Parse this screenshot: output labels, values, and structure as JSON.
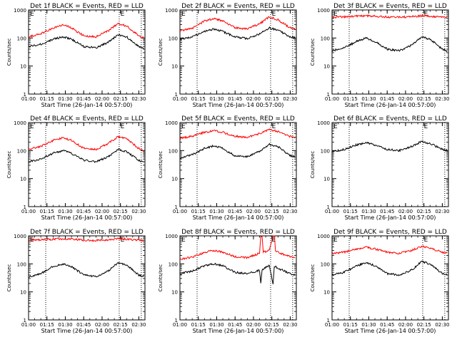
{
  "figure": {
    "shared": {
      "ylabel": "Counts/sec",
      "xlabel": "Start Time (26-Jan-14 00:57:00)",
      "x_tick_labels": [
        "01:00",
        "01:15",
        "01:30",
        "01:45",
        "02:00",
        "02:15",
        "02:30"
      ],
      "y_tick_labels": [
        "1",
        "10",
        "100",
        "1000"
      ],
      "marker_label": "E",
      "colors": {
        "events": "#000000",
        "lld": "#ff0000"
      }
    }
  },
  "chart_data": [
    {
      "type": "line",
      "title": "Det 1f BLACK = Events, RED = LLD",
      "xlabel": "Start Time (26-Jan-14 00:57:00)",
      "ylabel": "Counts/sec",
      "x_unit": "time (HH:MM, 26-Jan-14)",
      "y_scale": "log",
      "xlim": [
        "01:00",
        "02:35"
      ],
      "ylim": [
        1,
        1000
      ],
      "vertical_markers": [
        "01:14",
        "02:14",
        "02:32"
      ],
      "marker_label_at": "02:15",
      "series": [
        {
          "color": "#000000",
          "x": [
            "01:00",
            "01:10",
            "01:20",
            "01:28",
            "01:35",
            "01:45",
            "01:55",
            "02:05",
            "02:13",
            "02:20",
            "02:30",
            "02:34"
          ],
          "values": [
            50,
            60,
            90,
            110,
            90,
            50,
            45,
            70,
            130,
            110,
            50,
            45
          ]
        },
        {
          "color": "#ff0000",
          "x": [
            "01:00",
            "01:10",
            "01:20",
            "01:28",
            "01:35",
            "01:45",
            "01:55",
            "02:05",
            "02:13",
            "02:20",
            "02:30",
            "02:34"
          ],
          "values": [
            110,
            140,
            230,
            300,
            230,
            120,
            110,
            180,
            330,
            270,
            120,
            100
          ]
        }
      ]
    },
    {
      "type": "line",
      "title": "Det 2f BLACK = Events, RED = LLD",
      "xlabel": "Start Time (26-Jan-14 00:57:00)",
      "ylabel": "Counts/sec",
      "x_unit": "time (HH:MM, 26-Jan-14)",
      "y_scale": "log",
      "xlim": [
        "01:00",
        "02:35"
      ],
      "ylim": [
        1,
        1000
      ],
      "vertical_markers": [
        "01:14",
        "02:14",
        "02:32"
      ],
      "marker_label_at": "02:15",
      "series": [
        {
          "color": "#000000",
          "x": [
            "01:00",
            "01:10",
            "01:20",
            "01:28",
            "01:35",
            "01:45",
            "01:55",
            "02:05",
            "02:13",
            "02:20",
            "02:30",
            "02:34"
          ],
          "values": [
            90,
            110,
            170,
            210,
            170,
            110,
            95,
            140,
            230,
            190,
            110,
            100
          ]
        },
        {
          "color": "#ff0000",
          "x": [
            "01:00",
            "01:10",
            "01:20",
            "01:28",
            "01:35",
            "01:45",
            "01:55",
            "02:05",
            "02:13",
            "02:20",
            "02:30",
            "02:34"
          ],
          "values": [
            180,
            220,
            400,
            500,
            400,
            230,
            210,
            320,
            560,
            450,
            230,
            200
          ]
        }
      ]
    },
    {
      "type": "line",
      "title": "Det 3f BLACK = Events, RED = LLD",
      "xlabel": "Start Time (26-Jan-14 00:57:00)",
      "ylabel": "Counts/sec",
      "x_unit": "time (HH:MM, 26-Jan-14)",
      "y_scale": "log",
      "xlim": [
        "01:00",
        "02:35"
      ],
      "ylim": [
        1,
        1000
      ],
      "vertical_markers": [
        "01:14",
        "02:14",
        "02:32"
      ],
      "marker_label_at": "02:15",
      "series": [
        {
          "color": "#000000",
          "x": [
            "01:00",
            "01:10",
            "01:20",
            "01:28",
            "01:35",
            "01:45",
            "01:55",
            "02:05",
            "02:13",
            "02:20",
            "02:30",
            "02:34"
          ],
          "values": [
            35,
            45,
            75,
            100,
            75,
            40,
            35,
            55,
            110,
            90,
            40,
            35
          ]
        },
        {
          "color": "#ff0000",
          "x": [
            "01:00",
            "01:10",
            "01:20",
            "01:28",
            "01:35",
            "01:45",
            "01:55",
            "02:05",
            "02:13",
            "02:20",
            "02:30",
            "02:34"
          ],
          "values": [
            550,
            570,
            600,
            620,
            600,
            560,
            550,
            580,
            620,
            600,
            560,
            550
          ]
        }
      ]
    },
    {
      "type": "line",
      "title": "Det 4f BLACK = Events, RED = LLD",
      "xlabel": "Start Time (26-Jan-14 00:57:00)",
      "ylabel": "Counts/sec",
      "x_unit": "time (HH:MM, 26-Jan-14)",
      "y_scale": "log",
      "xlim": [
        "01:00",
        "02:35"
      ],
      "ylim": [
        1,
        1000
      ],
      "vertical_markers": [
        "01:14",
        "02:14",
        "02:32"
      ],
      "marker_label_at": "02:15",
      "series": [
        {
          "color": "#000000",
          "x": [
            "01:00",
            "01:10",
            "01:20",
            "01:28",
            "01:35",
            "01:45",
            "01:55",
            "02:05",
            "02:13",
            "02:20",
            "02:30",
            "02:34"
          ],
          "values": [
            40,
            50,
            80,
            100,
            80,
            45,
            40,
            60,
            110,
            90,
            45,
            40
          ]
        },
        {
          "color": "#ff0000",
          "x": [
            "01:00",
            "01:10",
            "01:20",
            "01:28",
            "01:35",
            "01:45",
            "01:55",
            "02:05",
            "02:13",
            "02:20",
            "02:30",
            "02:34"
          ],
          "values": [
            110,
            140,
            230,
            290,
            230,
            120,
            110,
            180,
            320,
            260,
            120,
            100
          ]
        }
      ]
    },
    {
      "type": "line",
      "title": "Det 5f BLACK = Events, RED = LLD",
      "xlabel": "Start Time (26-Jan-14 00:57:00)",
      "ylabel": "Counts/sec",
      "x_unit": "time (HH:MM, 26-Jan-14)",
      "y_scale": "log",
      "xlim": [
        "01:00",
        "02:35"
      ],
      "ylim": [
        1,
        1000
      ],
      "vertical_markers": [
        "01:14",
        "02:14",
        "02:32"
      ],
      "marker_label_at": "02:15",
      "series": [
        {
          "color": "#000000",
          "x": [
            "01:00",
            "01:10",
            "01:20",
            "01:28",
            "01:35",
            "01:45",
            "01:55",
            "02:05",
            "02:13",
            "02:20",
            "02:30",
            "02:34"
          ],
          "values": [
            55,
            70,
            120,
            150,
            120,
            65,
            60,
            95,
            170,
            140,
            65,
            60
          ]
        },
        {
          "color": "#ff0000",
          "x": [
            "01:00",
            "01:10",
            "01:20",
            "01:28",
            "01:35",
            "01:45",
            "01:55",
            "02:05",
            "02:13",
            "02:20",
            "02:30",
            "02:34"
          ],
          "values": [
            280,
            320,
            450,
            520,
            450,
            320,
            300,
            400,
            560,
            480,
            320,
            290
          ]
        }
      ]
    },
    {
      "type": "line",
      "title": "Det 6f BLACK = Events, RED = LLD",
      "xlabel": "Start Time (26-Jan-14 00:57:00)",
      "ylabel": "Counts/sec",
      "x_unit": "time (HH:MM, 26-Jan-14)",
      "y_scale": "log",
      "xlim": [
        "01:00",
        "02:35"
      ],
      "ylim": [
        1,
        1000
      ],
      "vertical_markers": [
        "01:14",
        "02:14",
        "02:32"
      ],
      "marker_label_at": "02:15",
      "series": [
        {
          "color": "#000000",
          "x": [
            "01:00",
            "01:10",
            "01:20",
            "01:28",
            "01:35",
            "01:45",
            "01:55",
            "02:05",
            "02:13",
            "02:20",
            "02:30",
            "02:34"
          ],
          "values": [
            90,
            110,
            160,
            190,
            160,
            110,
            100,
            140,
            210,
            180,
            110,
            100
          ]
        }
      ]
    },
    {
      "type": "line",
      "title": "Det 7f BLACK = Events, RED = LLD",
      "xlabel": "Start Time (26-Jan-14 00:57:00)",
      "ylabel": "Counts/sec",
      "x_unit": "time (HH:MM, 26-Jan-14)",
      "y_scale": "log",
      "xlim": [
        "01:00",
        "02:35"
      ],
      "ylim": [
        1,
        1000
      ],
      "vertical_markers": [
        "01:14",
        "02:14",
        "02:32"
      ],
      "marker_label_at": "02:15",
      "series": [
        {
          "color": "#000000",
          "x": [
            "01:00",
            "01:10",
            "01:20",
            "01:28",
            "01:35",
            "01:45",
            "01:55",
            "02:05",
            "02:13",
            "02:20",
            "02:30",
            "02:34"
          ],
          "values": [
            35,
            45,
            80,
            100,
            80,
            40,
            35,
            55,
            110,
            90,
            40,
            35
          ]
        },
        {
          "color": "#ff0000",
          "x": [
            "01:00",
            "01:10",
            "01:20",
            "01:28",
            "01:35",
            "01:45",
            "01:55",
            "02:05",
            "02:13",
            "02:20",
            "02:30",
            "02:34"
          ],
          "values": [
            700,
            720,
            760,
            780,
            760,
            700,
            680,
            720,
            800,
            760,
            700,
            680
          ]
        }
      ]
    },
    {
      "type": "line",
      "title": "Det 8f BLACK = Events, RED = LLD",
      "xlabel": "Start Time (26-Jan-14 00:57:00)",
      "ylabel": "Counts/sec",
      "x_unit": "time (HH:MM, 26-Jan-14)",
      "y_scale": "log",
      "xlim": [
        "01:00",
        "02:35"
      ],
      "ylim": [
        1,
        1000
      ],
      "vertical_markers": [
        "01:14",
        "02:14",
        "02:32"
      ],
      "marker_label_at": "02:15",
      "series": [
        {
          "color": "#000000",
          "x": [
            "01:00",
            "01:10",
            "01:20",
            "01:28",
            "01:35",
            "01:45",
            "01:55",
            "02:00",
            "02:05",
            "02:06",
            "02:07",
            "02:08",
            "02:13",
            "02:16",
            "02:17",
            "02:18",
            "02:20",
            "02:30",
            "02:34"
          ],
          "values": [
            45,
            55,
            85,
            100,
            85,
            50,
            45,
            50,
            60,
            20,
            60,
            65,
            90,
            20,
            80,
            80,
            70,
            45,
            40
          ]
        },
        {
          "color": "#ff0000",
          "x": [
            "01:00",
            "01:10",
            "01:20",
            "01:28",
            "01:35",
            "01:45",
            "01:55",
            "02:00",
            "02:05",
            "02:06",
            "02:07",
            "02:08",
            "02:13",
            "02:16",
            "02:17",
            "02:18",
            "02:20",
            "02:30",
            "02:34"
          ],
          "values": [
            150,
            170,
            260,
            300,
            260,
            180,
            165,
            200,
            240,
            1000,
            1000,
            260,
            300,
            1000,
            1000,
            280,
            260,
            180,
            165
          ]
        }
      ]
    },
    {
      "type": "line",
      "title": "Det 9f BLACK = Events, RED = LLD",
      "xlabel": "Start Time (26-Jan-14 00:57:00)",
      "ylabel": "Counts/sec",
      "x_unit": "time (HH:MM, 26-Jan-14)",
      "y_scale": "log",
      "xlim": [
        "01:00",
        "02:35"
      ],
      "ylim": [
        1,
        1000
      ],
      "vertical_markers": [
        "01:14",
        "02:14",
        "02:32"
      ],
      "marker_label_at": "02:15",
      "series": [
        {
          "color": "#000000",
          "x": [
            "01:00",
            "01:10",
            "01:20",
            "01:28",
            "01:35",
            "01:45",
            "01:55",
            "02:05",
            "02:13",
            "02:20",
            "02:30",
            "02:34"
          ],
          "values": [
            40,
            50,
            85,
            110,
            85,
            45,
            40,
            60,
            120,
            100,
            45,
            40
          ]
        },
        {
          "color": "#ff0000",
          "x": [
            "01:00",
            "01:10",
            "01:20",
            "01:28",
            "01:35",
            "01:45",
            "01:55",
            "02:05",
            "02:13",
            "02:20",
            "02:30",
            "02:34"
          ],
          "values": [
            230,
            260,
            340,
            390,
            340,
            260,
            240,
            300,
            420,
            360,
            260,
            240
          ]
        }
      ]
    }
  ]
}
